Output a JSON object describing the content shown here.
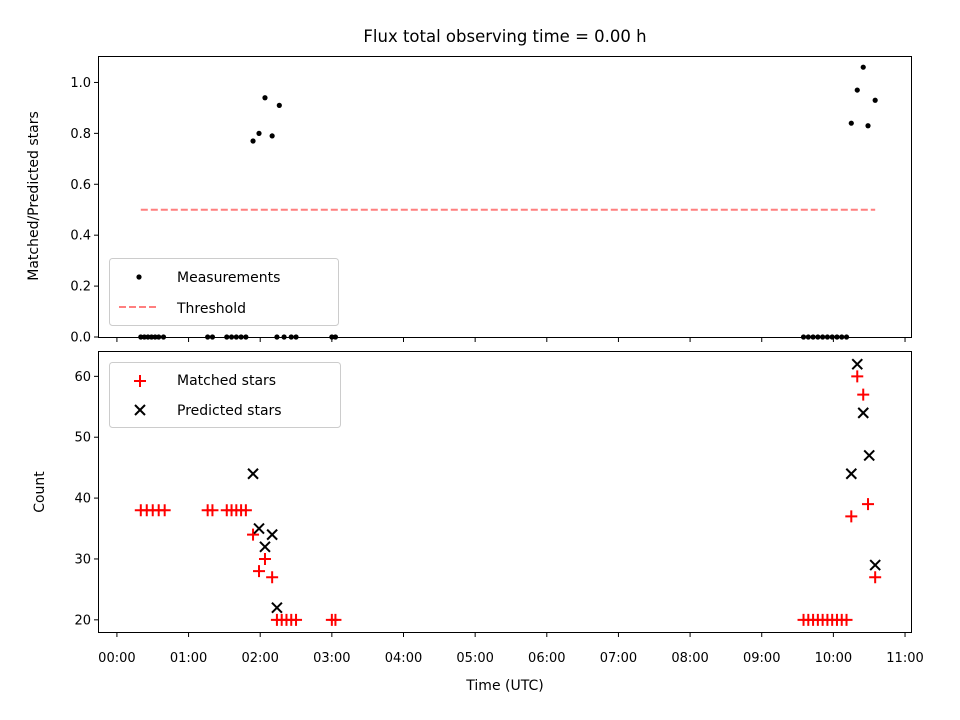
{
  "chart_data": [
    {
      "type": "scatter",
      "title": "Flux total observing time = 0.00 h",
      "xlabel": "",
      "ylabel": "Matched/Predicted stars",
      "xlim": [
        "23:45",
        "11:05"
      ],
      "ylim": [
        0.0,
        1.1
      ],
      "y_ticks": [
        "0.0",
        "0.2",
        "0.4",
        "0.6",
        "0.8",
        "1.0"
      ],
      "y_tick_values": [
        0.0,
        0.2,
        0.4,
        0.6,
        0.8,
        1.0
      ],
      "x_tick_values": [
        "00:00",
        "01:00",
        "02:00",
        "03:00",
        "04:00",
        "05:00",
        "06:00",
        "07:00",
        "08:00",
        "09:00",
        "10:00",
        "11:00"
      ],
      "grid": false,
      "legend_position": "lower-left",
      "series": [
        {
          "name": "Measurements",
          "marker": "dot",
          "color": "#000000",
          "points": [
            [
              "00:20",
              0
            ],
            [
              "00:23",
              0
            ],
            [
              "00:26",
              0
            ],
            [
              "00:29",
              0
            ],
            [
              "00:32",
              0
            ],
            [
              "00:35",
              0
            ],
            [
              "00:39",
              0
            ],
            [
              "01:16",
              0
            ],
            [
              "01:20",
              0
            ],
            [
              "01:32",
              0
            ],
            [
              "01:36",
              0
            ],
            [
              "01:40",
              0
            ],
            [
              "01:44",
              0
            ],
            [
              "01:48",
              0
            ],
            [
              "01:54",
              0.77
            ],
            [
              "01:59",
              0.8
            ],
            [
              "02:04",
              0.94
            ],
            [
              "02:10",
              0.79
            ],
            [
              "02:14",
              0
            ],
            [
              "02:16",
              0.91
            ],
            [
              "02:20",
              0
            ],
            [
              "02:26",
              0
            ],
            [
              "02:30",
              0
            ],
            [
              "03:00",
              0
            ],
            [
              "03:03",
              0
            ],
            [
              "09:35",
              0
            ],
            [
              "09:39",
              0
            ],
            [
              "09:43",
              0
            ],
            [
              "09:47",
              0
            ],
            [
              "09:51",
              0
            ],
            [
              "09:55",
              0
            ],
            [
              "09:59",
              0
            ],
            [
              "10:03",
              0
            ],
            [
              "10:07",
              0
            ],
            [
              "10:11",
              0
            ],
            [
              "10:15",
              0.84
            ],
            [
              "10:20",
              0.97
            ],
            [
              "10:25",
              1.06
            ],
            [
              "10:29",
              0.83
            ],
            [
              "10:35",
              0.93
            ]
          ]
        },
        {
          "name": "Threshold",
          "style": "dashed",
          "color": "#ff7f7f",
          "points": [
            [
              "00:20",
              0.5
            ],
            [
              "10:35",
              0.5
            ]
          ]
        }
      ]
    },
    {
      "type": "scatter",
      "title": "",
      "xlabel": "Time (UTC)",
      "ylabel": "Count",
      "xlim": [
        "23:45",
        "11:05"
      ],
      "ylim": [
        18,
        64
      ],
      "y_ticks": [
        "20",
        "30",
        "40",
        "50",
        "60"
      ],
      "y_tick_values": [
        20,
        30,
        40,
        50,
        60
      ],
      "x_ticks": [
        "00:00",
        "01:00",
        "02:00",
        "03:00",
        "04:00",
        "05:00",
        "06:00",
        "07:00",
        "08:00",
        "09:00",
        "10:00",
        "11:00"
      ],
      "grid": false,
      "legend_position": "top-left",
      "series": [
        {
          "name": "Matched stars",
          "marker": "plus",
          "color": "#ff0000",
          "points": [
            [
              "00:20",
              38
            ],
            [
              "00:25",
              38
            ],
            [
              "00:30",
              38
            ],
            [
              "00:35",
              38
            ],
            [
              "00:40",
              38
            ],
            [
              "01:16",
              38
            ],
            [
              "01:20",
              38
            ],
            [
              "01:32",
              38
            ],
            [
              "01:36",
              38
            ],
            [
              "01:40",
              38
            ],
            [
              "01:44",
              38
            ],
            [
              "01:48",
              38
            ],
            [
              "01:54",
              34
            ],
            [
              "01:59",
              28
            ],
            [
              "02:04",
              30
            ],
            [
              "02:10",
              27
            ],
            [
              "02:14",
              20
            ],
            [
              "02:18",
              20
            ],
            [
              "02:22",
              20
            ],
            [
              "02:26",
              20
            ],
            [
              "02:30",
              20
            ],
            [
              "03:00",
              20
            ],
            [
              "03:03",
              20
            ],
            [
              "09:35",
              20
            ],
            [
              "09:39",
              20
            ],
            [
              "09:43",
              20
            ],
            [
              "09:47",
              20
            ],
            [
              "09:51",
              20
            ],
            [
              "09:55",
              20
            ],
            [
              "09:59",
              20
            ],
            [
              "10:03",
              20
            ],
            [
              "10:07",
              20
            ],
            [
              "10:11",
              20
            ],
            [
              "10:15",
              37
            ],
            [
              "10:20",
              60
            ],
            [
              "10:25",
              57
            ],
            [
              "10:29",
              39
            ],
            [
              "10:35",
              27
            ]
          ]
        },
        {
          "name": "Predicted stars",
          "marker": "x",
          "color": "#000000",
          "points": [
            [
              "01:54",
              44
            ],
            [
              "01:59",
              35
            ],
            [
              "02:04",
              32
            ],
            [
              "02:10",
              34
            ],
            [
              "02:14",
              22
            ],
            [
              "10:15",
              44
            ],
            [
              "10:20",
              62
            ],
            [
              "10:25",
              54
            ],
            [
              "10:30",
              47
            ],
            [
              "10:35",
              29
            ]
          ]
        }
      ]
    }
  ]
}
